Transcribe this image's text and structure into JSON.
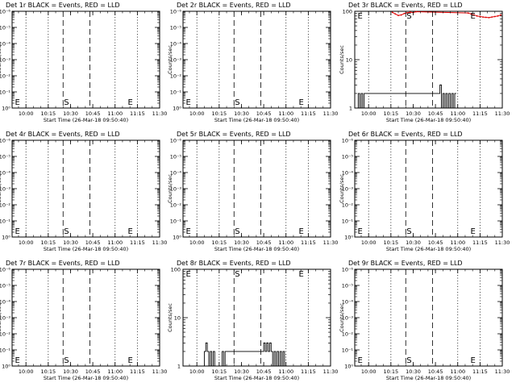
{
  "panel_title_suffix": "BLACK = Events, RED = LLD",
  "colors": {
    "events": "#000000",
    "lld": "#e00000",
    "axis": "#000000"
  },
  "chart_data": [
    {
      "type": "line",
      "title": "Det 1r BLACK = Events, RED = LLD",
      "detector": "Det 1r",
      "xlabel": "Start Time (26-Mar-18 09:50:40)",
      "ylabel": "Counts/sec",
      "xlim": [
        "09:50:40",
        "11:30"
      ],
      "xticks": [
        "10:00",
        "10:15",
        "10:30",
        "10:45",
        "11:00",
        "11:15",
        "11:30"
      ],
      "y_scale": "log",
      "yticks": [
        "10⁰",
        "10⁻¹",
        "10⁻²",
        "10⁻³",
        "10⁻⁴",
        "10⁻⁵",
        "10⁻⁶"
      ],
      "markers": [
        {
          "label": "E",
          "time": "09:52"
        },
        {
          "label": "S",
          "time": "10:25"
        },
        {
          "label": "E",
          "time": "11:08"
        }
      ],
      "dotted_lines": [
        "10:00",
        "10:15",
        "11:00",
        "11:15"
      ],
      "dashed_lines": [
        "10:25",
        "10:43"
      ],
      "series": []
    },
    {
      "type": "line",
      "title": "Det 2r BLACK = Events, RED = LLD",
      "detector": "Det 2r",
      "xlabel": "Start Time (26-Mar-18 09:50:40)",
      "ylabel": "Counts/sec",
      "xlim": [
        "09:50:40",
        "11:30"
      ],
      "xticks": [
        "10:00",
        "10:15",
        "10:30",
        "10:45",
        "11:00",
        "11:15",
        "11:30"
      ],
      "y_scale": "log",
      "yticks": [
        "10⁰",
        "10⁻¹",
        "10⁻²",
        "10⁻³",
        "10⁻⁴",
        "10⁻⁵",
        "10⁻⁶"
      ],
      "markers": [
        {
          "label": "E",
          "time": "09:52"
        },
        {
          "label": "S",
          "time": "10:25"
        },
        {
          "label": "E",
          "time": "11:08"
        }
      ],
      "dotted_lines": [
        "10:00",
        "10:15",
        "11:00",
        "11:15"
      ],
      "dashed_lines": [
        "10:25",
        "10:43"
      ],
      "series": []
    },
    {
      "type": "line",
      "title": "Det 3r BLACK = Events, RED = LLD",
      "detector": "Det 3r",
      "xlabel": "Start Time (26-Mar-18 09:50:40)",
      "ylabel": "Counts/sec",
      "xlim": [
        "09:50:40",
        "11:30"
      ],
      "xticks": [
        "10:00",
        "10:15",
        "10:30",
        "10:45",
        "11:00",
        "11:15",
        "11:30"
      ],
      "y_scale": "log",
      "ylim": [
        1,
        100
      ],
      "yticks": [
        "1",
        "10",
        "100"
      ],
      "markers": [
        {
          "label": "E",
          "time": "09:52"
        },
        {
          "label": "S",
          "time": "10:25"
        },
        {
          "label": "E",
          "time": "11:08"
        }
      ],
      "dotted_lines": [
        "10:00",
        "10:15",
        "11:00",
        "11:15"
      ],
      "dashed_lines": [
        "10:25",
        "10:43"
      ],
      "series": [
        {
          "name": "Events",
          "color": "#000000",
          "step": true,
          "x": [
            "09:53",
            "09:54",
            "09:55",
            "09:56",
            "09:57",
            "10:47",
            "10:48",
            "10:49",
            "10:50",
            "10:51",
            "10:52",
            "10:53",
            "10:54",
            "10:55",
            "10:56",
            "10:57",
            "10:58"
          ],
          "y": [
            2,
            1,
            2,
            1,
            2,
            2,
            3,
            1,
            2,
            1,
            2,
            1,
            2,
            1,
            2,
            1,
            2
          ]
        },
        {
          "name": "LLD",
          "color": "#e00000",
          "step": false,
          "x": [
            "10:16",
            "10:18",
            "10:20",
            "10:22",
            "10:24",
            "10:26",
            "10:28",
            "10:30",
            "10:32",
            "11:07",
            "11:09",
            "11:11",
            "11:13",
            "11:15",
            "11:17",
            "11:19",
            "11:21",
            "11:23",
            "11:25",
            "11:27",
            "11:29"
          ],
          "y": [
            95,
            88,
            82,
            84,
            90,
            93,
            96,
            94,
            98,
            92,
            88,
            84,
            80,
            78,
            76,
            75,
            74,
            76,
            78,
            80,
            84
          ]
        }
      ]
    },
    {
      "type": "line",
      "title": "Det 4r BLACK = Events, RED = LLD",
      "detector": "Det 4r",
      "xlabel": "Start Time (26-Mar-18 09:50:40)",
      "ylabel": "Counts/sec",
      "xlim": [
        "09:50:40",
        "11:30"
      ],
      "xticks": [
        "10:00",
        "10:15",
        "10:30",
        "10:45",
        "11:00",
        "11:15",
        "11:30"
      ],
      "y_scale": "log",
      "yticks": [
        "10⁰",
        "10⁻¹",
        "10⁻²",
        "10⁻³",
        "10⁻⁴",
        "10⁻⁵",
        "10⁻⁶"
      ],
      "markers": [
        {
          "label": "E",
          "time": "09:52"
        },
        {
          "label": "S",
          "time": "10:25"
        },
        {
          "label": "E",
          "time": "11:08"
        }
      ],
      "dotted_lines": [
        "10:00",
        "10:15",
        "11:00",
        "11:15"
      ],
      "dashed_lines": [
        "10:25",
        "10:43"
      ],
      "series": []
    },
    {
      "type": "line",
      "title": "Det 5r BLACK = Events, RED = LLD",
      "detector": "Det 5r",
      "xlabel": "Start Time (26-Mar-18 09:50:40)",
      "ylabel": "Counts/sec",
      "xlim": [
        "09:50:40",
        "11:30"
      ],
      "xticks": [
        "10:00",
        "10:15",
        "10:30",
        "10:45",
        "11:00",
        "11:15",
        "11:30"
      ],
      "y_scale": "log",
      "yticks": [
        "10⁰",
        "10⁻¹",
        "10⁻²",
        "10⁻³",
        "10⁻⁴",
        "10⁻⁵",
        "10⁻⁶"
      ],
      "markers": [
        {
          "label": "E",
          "time": "09:52"
        },
        {
          "label": "S",
          "time": "10:25"
        },
        {
          "label": "E",
          "time": "11:08"
        }
      ],
      "dotted_lines": [
        "10:00",
        "10:15",
        "11:00",
        "11:15"
      ],
      "dashed_lines": [
        "10:25",
        "10:43"
      ],
      "series": []
    },
    {
      "type": "line",
      "title": "Det 6r BLACK = Events, RED = LLD",
      "detector": "Det 6r",
      "xlabel": "Start Time (26-Mar-18 09:50:40)",
      "ylabel": "Counts/sec",
      "xlim": [
        "09:50:40",
        "11:30"
      ],
      "xticks": [
        "10:00",
        "10:15",
        "10:30",
        "10:45",
        "11:00",
        "11:15",
        "11:30"
      ],
      "y_scale": "log",
      "yticks": [
        "10⁰",
        "10⁻¹",
        "10⁻²",
        "10⁻³",
        "10⁻⁴",
        "10⁻⁵",
        "10⁻⁶"
      ],
      "markers": [
        {
          "label": "E",
          "time": "09:52"
        },
        {
          "label": "S",
          "time": "10:25"
        },
        {
          "label": "E",
          "time": "11:08"
        }
      ],
      "dotted_lines": [
        "10:00",
        "10:15",
        "11:00",
        "11:15"
      ],
      "dashed_lines": [
        "10:25",
        "10:43"
      ],
      "series": []
    },
    {
      "type": "line",
      "title": "Det 7r BLACK = Events, RED = LLD",
      "detector": "Det 7r",
      "xlabel": "Start Time (26-Mar-18 09:50:40)",
      "ylabel": "Counts/sec",
      "xlim": [
        "09:50:40",
        "11:30"
      ],
      "xticks": [
        "10:00",
        "10:15",
        "10:30",
        "10:45",
        "11:00",
        "11:15",
        "11:30"
      ],
      "y_scale": "log",
      "yticks": [
        "10⁰",
        "10⁻¹",
        "10⁻²",
        "10⁻³",
        "10⁻⁴",
        "10⁻⁵",
        "10⁻⁶"
      ],
      "markers": [
        {
          "label": "E",
          "time": "09:52"
        },
        {
          "label": "S",
          "time": "10:25"
        },
        {
          "label": "E",
          "time": "11:08"
        }
      ],
      "dotted_lines": [
        "10:00",
        "10:15",
        "11:00",
        "11:15"
      ],
      "dashed_lines": [
        "10:25",
        "10:43"
      ],
      "series": []
    },
    {
      "type": "line",
      "title": "Det 8r BLACK = Events, RED = LLD",
      "detector": "Det 8r",
      "xlabel": "Start Time (26-Mar-18 09:50:40)",
      "ylabel": "Counts/sec",
      "xlim": [
        "09:50:40",
        "11:30"
      ],
      "xticks": [
        "10:00",
        "10:15",
        "10:30",
        "10:45",
        "11:00",
        "11:15",
        "11:30"
      ],
      "y_scale": "log",
      "ylim": [
        1,
        100
      ],
      "yticks": [
        "1",
        "10",
        "100"
      ],
      "markers": [
        {
          "label": "E",
          "time": "09:52"
        },
        {
          "label": "S",
          "time": "10:25"
        },
        {
          "label": "E",
          "time": "11:08"
        }
      ],
      "dotted_lines": [
        "10:00",
        "10:15",
        "11:00",
        "11:15"
      ],
      "dashed_lines": [
        "10:25",
        "10:43"
      ],
      "series": [
        {
          "name": "Events",
          "color": "#000000",
          "step": true,
          "x": [
            "10:05",
            "10:06",
            "10:07",
            "10:08",
            "10:09",
            "10:10",
            "10:11",
            "10:12",
            "10:17",
            "10:18",
            "10:19",
            "10:44",
            "10:45",
            "10:46",
            "10:47",
            "10:48",
            "10:49",
            "10:50",
            "10:51",
            "10:52",
            "10:53",
            "10:54",
            "10:55",
            "10:56",
            "10:57",
            "10:58",
            "10:59"
          ],
          "y": [
            2,
            3,
            2,
            1,
            2,
            1,
            2,
            1,
            2,
            1,
            2,
            2,
            3,
            2,
            3,
            2,
            3,
            2,
            1,
            2,
            1,
            2,
            1,
            2,
            1,
            2,
            1
          ]
        }
      ]
    },
    {
      "type": "line",
      "title": "Det 9r BLACK = Events, RED = LLD",
      "detector": "Det 9r",
      "xlabel": "Start Time (26-Mar-18 09:50:40)",
      "ylabel": "Counts/sec",
      "xlim": [
        "09:50:40",
        "11:30"
      ],
      "xticks": [
        "10:00",
        "10:15",
        "10:30",
        "10:45",
        "11:00",
        "11:15",
        "11:30"
      ],
      "y_scale": "log",
      "yticks": [
        "10⁰",
        "10⁻¹",
        "10⁻²",
        "10⁻³",
        "10⁻⁴",
        "10⁻⁵",
        "10⁻⁶"
      ],
      "markers": [
        {
          "label": "E",
          "time": "09:52"
        },
        {
          "label": "S",
          "time": "10:25"
        },
        {
          "label": "E",
          "time": "11:08"
        }
      ],
      "dotted_lines": [
        "10:00",
        "10:15",
        "11:00",
        "11:15"
      ],
      "dashed_lines": [
        "10:25",
        "10:43"
      ],
      "series": []
    }
  ]
}
